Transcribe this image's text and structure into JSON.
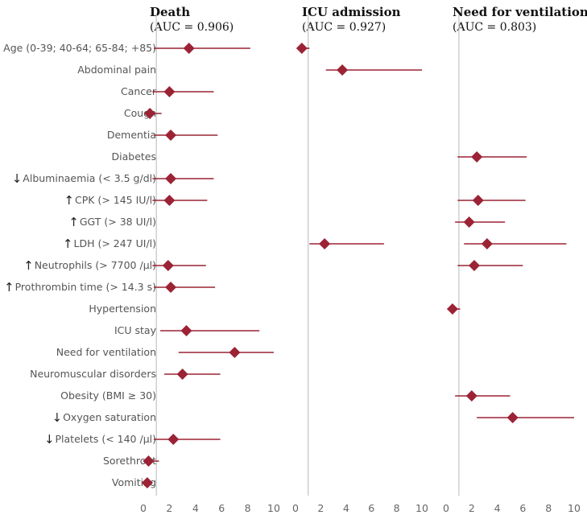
{
  "chart_data": {
    "type": "forest",
    "colors": {
      "marker": "#9b2335",
      "whisker": "#9b2335",
      "reference_line": "#c8c8c8",
      "label": "#555555"
    },
    "rows": [
      {
        "label": "Age (0-39; 40-64; 65-84; +85)",
        "arrow": ""
      },
      {
        "label": "Abdominal pain",
        "arrow": ""
      },
      {
        "label": "Cancer",
        "arrow": ""
      },
      {
        "label": "Cough",
        "arrow": ""
      },
      {
        "label": "Dementia",
        "arrow": ""
      },
      {
        "label": "Diabetes",
        "arrow": ""
      },
      {
        "label": "Albuminaemia (< 3.5 g/dl)",
        "arrow": "↓"
      },
      {
        "label": "CPK (> 145 IU/l)",
        "arrow": "↑"
      },
      {
        "label": "GGT (> 38 UI/l)",
        "arrow": "↑"
      },
      {
        "label": "LDH (> 247 UI/l)",
        "arrow": "↑"
      },
      {
        "label": "Neutrophils (> 7700 /µl)",
        "arrow": "↑"
      },
      {
        "label": "Prothrombin time (> 14.3 s)",
        "arrow": "↑"
      },
      {
        "label": "Hypertension",
        "arrow": ""
      },
      {
        "label": "ICU stay",
        "arrow": ""
      },
      {
        "label": "Need for ventilation",
        "arrow": ""
      },
      {
        "label": "Neuromuscular disorders",
        "arrow": ""
      },
      {
        "label": "Obesity (BMI ≥ 30)",
        "arrow": ""
      },
      {
        "label": "Oxygen saturation",
        "arrow": "↓"
      },
      {
        "label": "Platelets (< 140 /µl)",
        "arrow": "↓"
      },
      {
        "label": "Sorethroat",
        "arrow": ""
      },
      {
        "label": "Vomiting",
        "arrow": ""
      }
    ],
    "panels": [
      {
        "title": "Death",
        "subtitle": "(AUC = 0.906)",
        "xlim": [
          0,
          10
        ],
        "ticks": [
          "0",
          "2",
          "4",
          "6",
          "8",
          "10"
        ],
        "reference": 1,
        "estimates": [
          {
            "row": 0,
            "value": 3.5,
            "lo": 0.8,
            "hi": 8.2
          },
          {
            "row": 2,
            "value": 2.0,
            "lo": 0.7,
            "hi": 5.4
          },
          {
            "row": 3,
            "value": 0.5,
            "lo": 0.15,
            "hi": 1.4
          },
          {
            "row": 4,
            "value": 2.1,
            "lo": 0.8,
            "hi": 5.7
          },
          {
            "row": 6,
            "value": 2.1,
            "lo": 0.7,
            "hi": 5.4
          },
          {
            "row": 7,
            "value": 2.0,
            "lo": 0.7,
            "hi": 4.9
          },
          {
            "row": 10,
            "value": 1.9,
            "lo": 0.7,
            "hi": 4.8
          },
          {
            "row": 11,
            "value": 2.1,
            "lo": 0.8,
            "hi": 5.5
          },
          {
            "row": 13,
            "value": 3.3,
            "lo": 1.3,
            "hi": 8.9
          },
          {
            "row": 14,
            "value": 7.0,
            "lo": 2.7,
            "hi": 10.0
          },
          {
            "row": 15,
            "value": 3.0,
            "lo": 1.6,
            "hi": 5.9
          },
          {
            "row": 18,
            "value": 2.3,
            "lo": 0.8,
            "hi": 5.9
          },
          {
            "row": 19,
            "value": 0.4,
            "lo": 0.0,
            "hi": 1.2
          },
          {
            "row": 20,
            "value": 0.3,
            "lo": 0.0,
            "hi": 0.7
          }
        ]
      },
      {
        "title": "ICU admission",
        "subtitle": "(AUC = 0.927)",
        "xlim": [
          0,
          10
        ],
        "ticks": [
          "0",
          "2",
          "4",
          "6",
          "8",
          "10"
        ],
        "reference": 1,
        "estimates": [
          {
            "row": 0,
            "value": 0.5,
            "lo": 0.1,
            "hi": 1.1
          },
          {
            "row": 1,
            "value": 3.7,
            "lo": 2.4,
            "hi": 10.0
          },
          {
            "row": 9,
            "value": 2.3,
            "lo": 1.1,
            "hi": 7.0
          }
        ]
      },
      {
        "title": "Need for ventilation",
        "subtitle": "(AUC = 0.803)",
        "xlim": [
          0,
          10
        ],
        "ticks": [
          "0",
          "2",
          "4",
          "6",
          "8",
          "10"
        ],
        "reference": 1,
        "estimates": [
          {
            "row": 5,
            "value": 2.4,
            "lo": 0.9,
            "hi": 6.3
          },
          {
            "row": 7,
            "value": 2.5,
            "lo": 0.9,
            "hi": 6.2
          },
          {
            "row": 8,
            "value": 1.8,
            "lo": 0.7,
            "hi": 4.6
          },
          {
            "row": 9,
            "value": 3.2,
            "lo": 1.4,
            "hi": 9.4
          },
          {
            "row": 10,
            "value": 2.2,
            "lo": 0.9,
            "hi": 6.0
          },
          {
            "row": 12,
            "value": 0.5,
            "lo": 0.1,
            "hi": 1.1
          },
          {
            "row": 16,
            "value": 2.0,
            "lo": 0.7,
            "hi": 5.0
          },
          {
            "row": 17,
            "value": 5.2,
            "lo": 2.4,
            "hi": 10.0
          }
        ]
      }
    ]
  }
}
